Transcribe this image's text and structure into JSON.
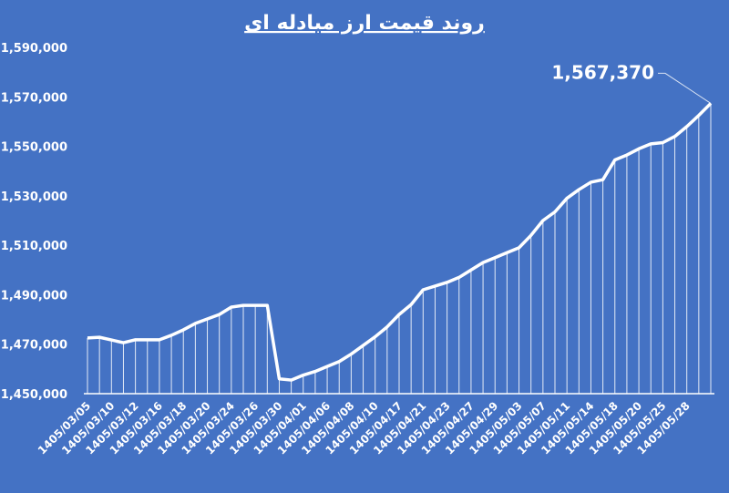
{
  "chart_data": {
    "type": "line",
    "title": "روند قیمت ارز مبادله ای",
    "categories": [
      "1405/03/05",
      null,
      "1405/03/10",
      null,
      "1405/03/12",
      null,
      "1405/03/16",
      null,
      "1405/03/18",
      null,
      "1405/03/20",
      null,
      "1405/03/24",
      null,
      "1405/03/26",
      null,
      "1405/03/30",
      null,
      "1405/04/01",
      null,
      "1405/04/06",
      null,
      "1405/04/08",
      null,
      "1405/04/10",
      null,
      "1405/04/17",
      null,
      "1405/04/21",
      null,
      "1405/04/23",
      null,
      "1405/04/27",
      null,
      "1405/04/29",
      null,
      "1405/05/03",
      null,
      "1405/05/07",
      null,
      "1405/05/11",
      null,
      "1405/05/14",
      null,
      "1405/05/18",
      null,
      "1405/05/20",
      null,
      "1405/05/25",
      null,
      "1405/05/28",
      null,
      null
    ],
    "values": [
      1472500,
      1472800,
      1471700,
      1470600,
      1471800,
      1471800,
      1471800,
      1473600,
      1475800,
      1478400,
      1480200,
      1482000,
      1485000,
      1485700,
      1485700,
      1485700,
      1456000,
      1455500,
      1457500,
      1459000,
      1461000,
      1463000,
      1466000,
      1469500,
      1473000,
      1477000,
      1482000,
      1486000,
      1492000,
      1493500,
      1495000,
      1497000,
      1500000,
      1503000,
      1505000,
      1507000,
      1509000,
      1514000,
      1520000,
      1523500,
      1529000,
      1532500,
      1535500,
      1536500,
      1544500,
      1546500,
      1549000,
      1551000,
      1551500,
      1554000,
      1558000,
      1562500,
      1567370
    ],
    "value_labels": [
      null,
      null,
      null,
      null,
      null,
      null,
      null,
      null,
      null,
      null,
      null,
      null,
      null,
      null,
      null,
      null,
      null,
      null,
      null,
      null,
      null,
      null,
      null,
      null,
      null,
      null,
      null,
      null,
      null,
      null,
      null,
      null,
      null,
      null,
      null,
      null,
      null,
      null,
      null,
      null,
      null,
      null,
      null,
      null,
      null,
      null,
      null,
      null,
      null,
      null,
      null,
      null,
      "1,567,370"
    ],
    "color": "#ffffff",
    "ylim": [
      1450000,
      1590000
    ],
    "yticks": [
      {
        "value": 1450000,
        "label": "1,450,000"
      },
      {
        "value": 1470000,
        "label": "1,470,000"
      },
      {
        "value": 1490000,
        "label": "1,490,000"
      },
      {
        "value": 1510000,
        "label": "1,510,000"
      },
      {
        "value": 1530000,
        "label": "1,530,000"
      },
      {
        "value": 1550000,
        "label": "1,550,000"
      },
      {
        "value": 1570000,
        "label": "1,570,000"
      },
      {
        "value": 1590000,
        "label": "1,590,000"
      }
    ],
    "drop_lines": true
  }
}
